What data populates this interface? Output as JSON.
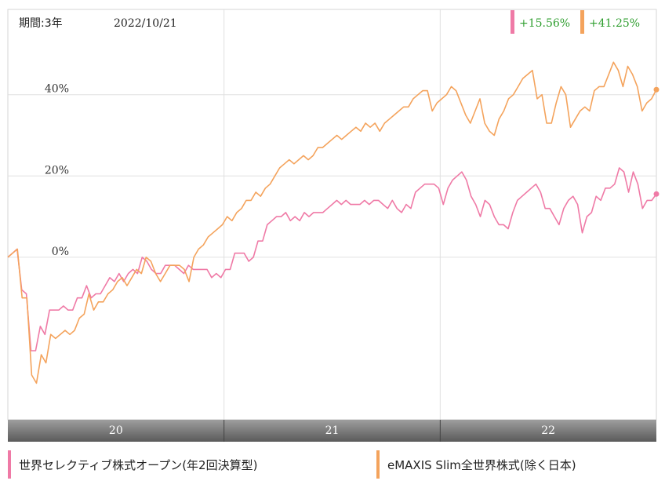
{
  "header": {
    "period_label": "期間:3年",
    "date": "2022/10/21",
    "badges": [
      {
        "value": "+15.56%",
        "color": "#ef7aa6"
      },
      {
        "value": "+41.25%",
        "color": "#f4a35c"
      }
    ],
    "badge_text_color": "#2e9e2e"
  },
  "chart_data": {
    "type": "line",
    "x_ticks": [
      "20",
      "21",
      "22"
    ],
    "y_ticks": [
      "0%",
      "20%",
      "40%"
    ],
    "ylim": [
      -40,
      61
    ],
    "grid": true,
    "series": [
      {
        "name": "世界セレクティブ株式オープン(年2回決算型)",
        "color": "#ef7aa6",
        "end_value": 15.56,
        "values": [
          0,
          1,
          2,
          -8,
          -9,
          -23,
          -23,
          -17,
          -19,
          -13,
          -13,
          -13,
          -12,
          -13,
          -13,
          -10,
          -10,
          -7,
          -10,
          -9,
          -9,
          -7,
          -5,
          -6,
          -4,
          -6,
          -4,
          -3,
          -4,
          0,
          -1,
          -3,
          -4,
          -4,
          -2,
          -2,
          -2,
          -3,
          -4,
          -2,
          -3,
          -3,
          -3,
          -3,
          -5,
          -4,
          -5,
          -3,
          -3,
          1,
          1,
          1,
          -1,
          0,
          4,
          4,
          8,
          9,
          10,
          10,
          11,
          9,
          10,
          9,
          11,
          10,
          11,
          11,
          11,
          12,
          13,
          14,
          13,
          14,
          13,
          13,
          13,
          14,
          13,
          14,
          14,
          13,
          12,
          14,
          12,
          11,
          13,
          12,
          16,
          17,
          18,
          18,
          18,
          17,
          13,
          17,
          19,
          20,
          21,
          19,
          15,
          13,
          10,
          14,
          13,
          10,
          8,
          8,
          7,
          11,
          14,
          15,
          16,
          17,
          18,
          16,
          12,
          12,
          10,
          8,
          12,
          14,
          15,
          13,
          6,
          10,
          11,
          15,
          14,
          17,
          17,
          18,
          22,
          21,
          16,
          21,
          18,
          12,
          14,
          14,
          15.56
        ]
      },
      {
        "name": "eMAXIS Slim全世界株式(除く日本)",
        "color": "#f4a35c",
        "end_value": 41.25,
        "values": [
          0,
          1,
          2,
          -10,
          -10,
          -29,
          -31,
          -24,
          -26,
          -19,
          -20,
          -19,
          -18,
          -19,
          -18,
          -15,
          -14,
          -9,
          -13,
          -11,
          -11,
          -9,
          -8,
          -6,
          -5,
          -7,
          -5,
          -3,
          -4,
          0,
          -1,
          -4,
          -6,
          -4,
          -2,
          -2,
          -2,
          -3,
          -6,
          0,
          2,
          3,
          5,
          6,
          7,
          8,
          10,
          9,
          11,
          12,
          14,
          14,
          16,
          15,
          17,
          18,
          20,
          22,
          23,
          24,
          23,
          24,
          25,
          24,
          25,
          27,
          27,
          28,
          29,
          30,
          29,
          30,
          31,
          32,
          31,
          33,
          32,
          33,
          31,
          33,
          34,
          35,
          36,
          37,
          37,
          39,
          40,
          41,
          41,
          36,
          38,
          39,
          40,
          42,
          41,
          38,
          35,
          33,
          36,
          39,
          33,
          31,
          30,
          34,
          36,
          39,
          40,
          42,
          44,
          45,
          46,
          39,
          40,
          33,
          33,
          38,
          42,
          40,
          32,
          34,
          36,
          37,
          36,
          41,
          42,
          42,
          45,
          48,
          46,
          42,
          47,
          45,
          42,
          36,
          38,
          39,
          41.25
        ]
      }
    ]
  },
  "colors": {
    "grid": "#e0e0e0",
    "axis_band_start": "#9e9e9e",
    "axis_band_end": "#5a5a5a"
  }
}
